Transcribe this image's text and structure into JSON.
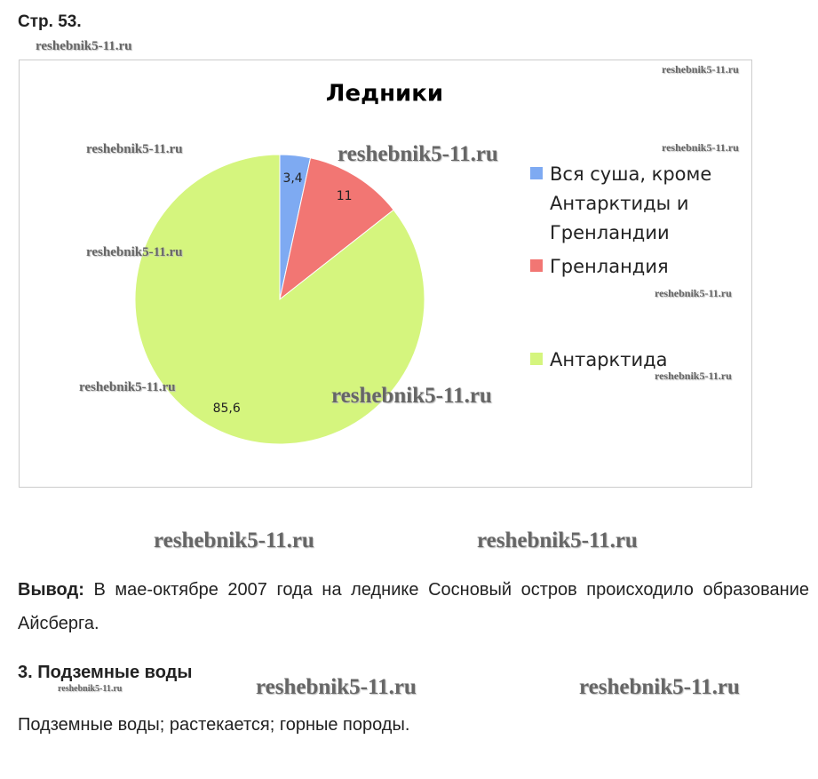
{
  "header": {
    "title": "Стр. 53."
  },
  "chart_data": {
    "type": "pie",
    "title": "Ледники",
    "categories": [
      "Вся суша, кроме Антарктиды и Гренландии",
      "Гренландия",
      "Антарктида"
    ],
    "values": [
      3.4,
      11,
      85.6
    ],
    "value_labels": [
      "3,4",
      "11",
      "85,6"
    ],
    "colors": [
      "#7eaaf2",
      "#f27673",
      "#d5f57e"
    ],
    "legend": "right"
  },
  "conclusion": {
    "label": "Вывод:",
    "text": "В мае-октябре 2007 года на леднике Сосновый остров происходило образование Айсберга."
  },
  "section": {
    "title": "3. Подземные воды",
    "text": "Подземные воды; растекается; горные породы."
  },
  "watermarks": [
    "reshebnik5-11.ru",
    "reshebnik5-11.ru",
    "reshebnik5-11.ru",
    "reshebnik5-11.ru",
    "reshebnik5-11.ru",
    "reshebnik5-11.ru",
    "reshebnik5-11.ru",
    "reshebnik5-11.ru",
    "reshebnik5-11.ru",
    "reshebnik5-11.ru",
    "reshebnik5-11.ru",
    "reshebnik5-11.ru",
    "reshebnik5-11.ru",
    "reshebnik5-11.ru",
    "reshebnik5-11.ru"
  ]
}
